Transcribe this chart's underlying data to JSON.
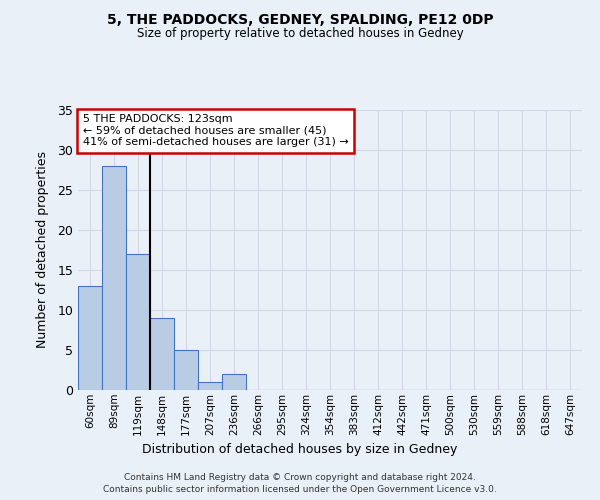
{
  "title1": "5, THE PADDOCKS, GEDNEY, SPALDING, PE12 0DP",
  "title2": "Size of property relative to detached houses in Gedney",
  "xlabel": "Distribution of detached houses by size in Gedney",
  "ylabel": "Number of detached properties",
  "categories": [
    "60sqm",
    "89sqm",
    "119sqm",
    "148sqm",
    "177sqm",
    "207sqm",
    "236sqm",
    "266sqm",
    "295sqm",
    "324sqm",
    "354sqm",
    "383sqm",
    "412sqm",
    "442sqm",
    "471sqm",
    "500sqm",
    "530sqm",
    "559sqm",
    "588sqm",
    "618sqm",
    "647sqm"
  ],
  "values": [
    13,
    28,
    17,
    9,
    5,
    1,
    2,
    0,
    0,
    0,
    0,
    0,
    0,
    0,
    0,
    0,
    0,
    0,
    0,
    0,
    0
  ],
  "bar_color": "#b8cce4",
  "bar_edge_color": "#4472c4",
  "grid_color": "#d0d8e8",
  "background_color": "#eaf0f8",
  "vline_x_index": 2,
  "vline_color": "#000000",
  "annotation_line1": "5 THE PADDOCKS: 123sqm",
  "annotation_line2": "← 59% of detached houses are smaller (45)",
  "annotation_line3": "41% of semi-detached houses are larger (31) →",
  "annotation_box_color": "#ffffff",
  "annotation_box_edge_color": "#cc0000",
  "ylim": [
    0,
    35
  ],
  "yticks": [
    0,
    5,
    10,
    15,
    20,
    25,
    30,
    35
  ],
  "footer1": "Contains HM Land Registry data © Crown copyright and database right 2024.",
  "footer2": "Contains public sector information licensed under the Open Government Licence v3.0."
}
